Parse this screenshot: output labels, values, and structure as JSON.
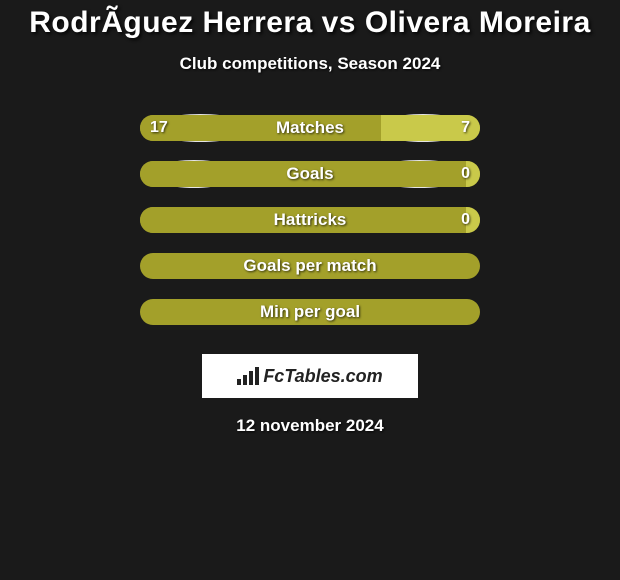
{
  "title": "RodrÃ­guez Herrera vs Olivera Moreira",
  "subtitle": "Club competitions, Season 2024",
  "date": "12 november 2024",
  "logo_text": "FcTables.com",
  "colors": {
    "background": "#1a1a1a",
    "text": "#ffffff",
    "bar_left": "#a3a02a",
    "bar_right": "#c9c94a",
    "bar_empty": "#a3a02a",
    "ellipse": "#e5e5e5",
    "logo_bg": "#ffffff"
  },
  "ellipse_sizes": {
    "row0_left_w": 105,
    "row0_right_w": 98,
    "row1_left_w": 92,
    "row1_right_w": 105
  },
  "rows": [
    {
      "label": "Matches",
      "left_val": "17",
      "right_val": "7",
      "left_pct": 70.8,
      "right_pct": 29.2,
      "show_left_ellipse": true,
      "show_right_ellipse": true
    },
    {
      "label": "Goals",
      "left_val": "",
      "right_val": "0",
      "left_pct": 96,
      "right_pct": 4,
      "show_left_ellipse": true,
      "show_right_ellipse": true
    },
    {
      "label": "Hattricks",
      "left_val": "",
      "right_val": "0",
      "left_pct": 96,
      "right_pct": 4,
      "show_left_ellipse": false,
      "show_right_ellipse": false
    },
    {
      "label": "Goals per match",
      "left_val": "",
      "right_val": "",
      "left_pct": 100,
      "right_pct": 0,
      "show_left_ellipse": false,
      "show_right_ellipse": false
    },
    {
      "label": "Min per goal",
      "left_val": "",
      "right_val": "",
      "left_pct": 100,
      "right_pct": 0,
      "show_left_ellipse": false,
      "show_right_ellipse": false
    }
  ]
}
